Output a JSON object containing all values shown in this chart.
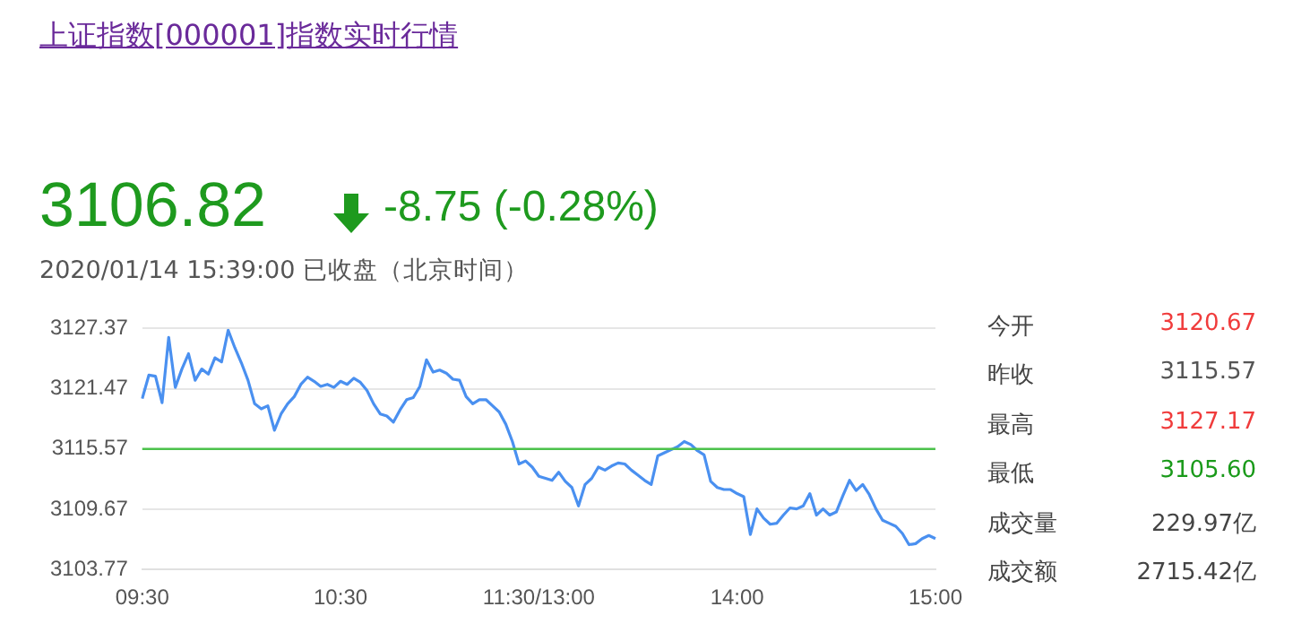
{
  "chart_data": {
    "type": "line",
    "title": "上证指数[000001]指数实时行情",
    "annotations": [
      "3106.82",
      "-8.75 (-0.28%)",
      "2020/01/14 15:39:00  已收盘（北京时间）",
      "今开",
      "3120.67",
      "昨收",
      "3115.57",
      "最高",
      "3127.17",
      "最低",
      "3105.60",
      "成交量",
      "229.97亿",
      "成交额",
      "2715.42亿"
    ],
    "categories": [
      "09:30",
      null,
      null,
      null,
      null,
      null,
      null,
      null,
      null,
      null,
      null,
      null,
      null,
      null,
      null,
      null,
      null,
      null,
      null,
      null,
      null,
      null,
      null,
      null,
      null,
      null,
      null,
      null,
      null,
      null,
      "10:30",
      null,
      null,
      null,
      null,
      null,
      null,
      null,
      null,
      null,
      null,
      null,
      null,
      null,
      null,
      null,
      null,
      null,
      null,
      null,
      null,
      null,
      null,
      null,
      null,
      null,
      null,
      null,
      null,
      null,
      "11:30/13:00",
      null,
      null,
      null,
      null,
      null,
      null,
      null,
      null,
      null,
      null,
      null,
      null,
      null,
      null,
      null,
      null,
      null,
      null,
      null,
      null,
      null,
      null,
      null,
      null,
      null,
      null,
      null,
      null,
      null,
      "14:00",
      null,
      null,
      null,
      null,
      null,
      null,
      null,
      null,
      null,
      null,
      null,
      null,
      null,
      null,
      null,
      null,
      null,
      null,
      null,
      null,
      null,
      null,
      null,
      null,
      null,
      null,
      null,
      null,
      null,
      "15:00"
    ],
    "series": [
      {
        "color": "#4a90f0",
        "values": [
          3120.5,
          3122.8,
          3122.7,
          3120.1,
          3126.5,
          3121.6,
          3123.4,
          3124.9,
          3122.3,
          3123.4,
          3122.9,
          3124.5,
          3124.1,
          3127.2,
          3125.5,
          3124.0,
          3122.3,
          3120.0,
          3119.5,
          3119.8,
          3117.4,
          3119.0,
          3120.0,
          3120.7,
          3121.9,
          3122.6,
          3122.2,
          3121.7,
          3121.9,
          3121.6,
          3122.2,
          3121.9,
          3122.5,
          3122.1,
          3121.3,
          3120.0,
          3119.0,
          3118.8,
          3118.2,
          3119.4,
          3120.4,
          3120.6,
          3121.7,
          3124.3,
          3123.1,
          3123.3,
          3123.0,
          3122.4,
          3122.3,
          3120.7,
          3120.0,
          3120.4,
          3120.4,
          3119.8,
          3119.2,
          3118.0,
          3116.3,
          3114.1,
          3114.4,
          3113.8,
          3112.9,
          3112.7,
          3112.5,
          3113.3,
          3112.4,
          3111.8,
          3110.0,
          3112.1,
          3112.7,
          3113.8,
          3113.5,
          3113.9,
          3114.2,
          3114.1,
          3113.5,
          3113.0,
          3112.5,
          3112.1,
          3114.9,
          3115.2,
          3115.5,
          3115.8,
          3116.3,
          3116.0,
          3115.4,
          3115.0,
          3112.4,
          3111.8,
          3111.6,
          3111.6,
          3111.2,
          3110.9,
          3107.2,
          3109.7,
          3108.8,
          3108.2,
          3108.3,
          3109.1,
          3109.8,
          3109.7,
          3110.0,
          3111.2,
          3109.1,
          3109.7,
          3109.1,
          3109.4,
          3111.0,
          3112.5,
          3111.5,
          3112.1,
          3111.1,
          3109.7,
          3108.6,
          3108.3,
          3108.0,
          3107.3,
          3106.2,
          3106.3,
          3106.8,
          3107.1,
          3106.8
        ]
      }
    ],
    "ylim": [
      3103.77,
      3127.37
    ],
    "yticks": [
      3103.77,
      3109.67,
      3115.57,
      3121.47,
      3127.37
    ],
    "ref_lines": [
      {
        "axis": "y",
        "value": 3115.57,
        "color": "#4cc24c"
      }
    ],
    "grid": "y",
    "legend": false,
    "marker": "none",
    "line_style": "solid"
  }
}
